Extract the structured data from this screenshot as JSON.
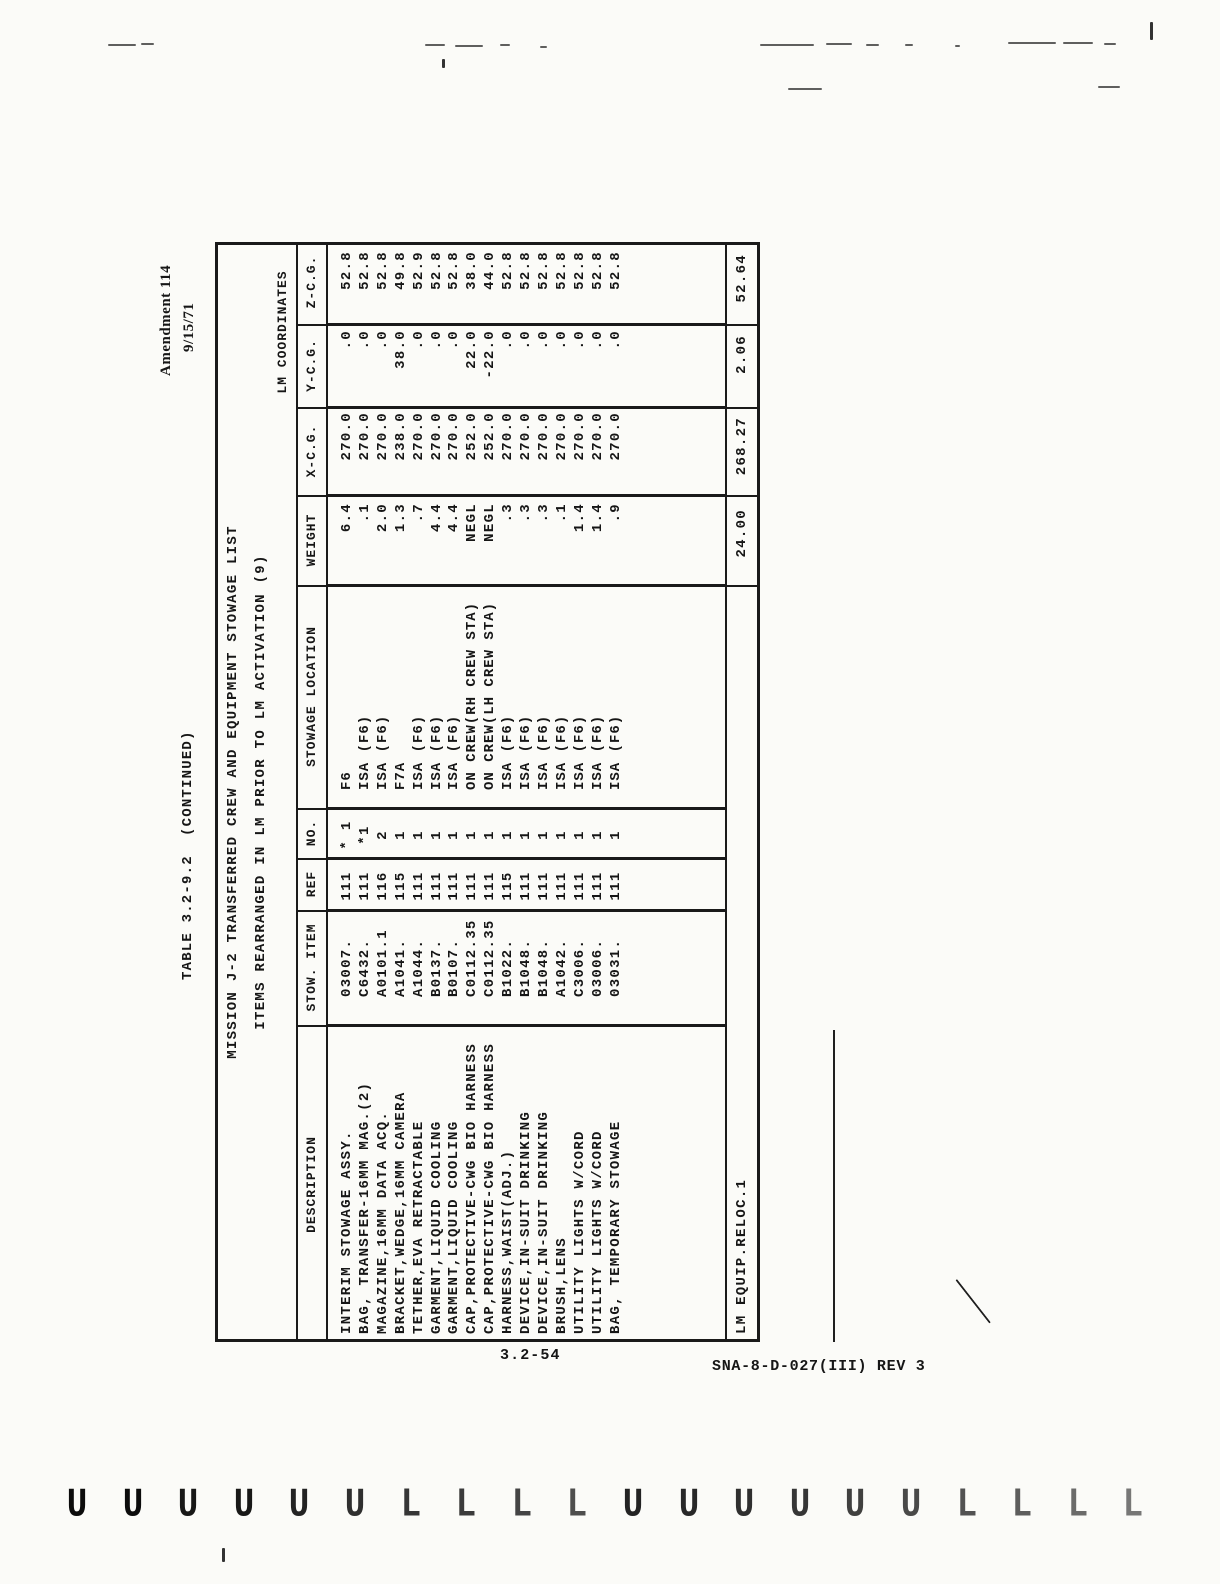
{
  "page": {
    "amendment_line1": "Amendment 114",
    "amendment_line2": "9/15/71",
    "table_caption": "TABLE 3.2-9.2  (CONTINUED)",
    "footer_page_number": "3.2-54",
    "footer_doc_number": "SNA-8-D-027(III) REV 3"
  },
  "table": {
    "title_line1": "MISSION J-2 TRANSFERRED CREW AND EQUIPMENT STOWAGE LIST",
    "title_line2": "ITEMS REARRANGED IN LM PRIOR TO LM ACTIVATION (9)",
    "coordinates_header": "LM COORDINATES",
    "columns": [
      "DESCRIPTION",
      "STOW. ITEM",
      "REF",
      "NO.",
      "STOWAGE LOCATION",
      "WEIGHT",
      "X-C.G.",
      "Y-C.G.",
      "Z-C.G."
    ],
    "rows": [
      {
        "description": "INTERIM STOWAGE ASSY.",
        "stow_item": "03007.",
        "ref": "111",
        "no": "* 1",
        "location": "F6",
        "weight": "6.4",
        "x_cg": "270.0",
        "y_cg": ".0",
        "z_cg": "52.8"
      },
      {
        "description": "BAG, TRANSFER-16MM MAG.(2)",
        "stow_item": "C6432.",
        "ref": "111",
        "no": "*1",
        "location": "ISA (F6)",
        "weight": ".1",
        "x_cg": "270.0",
        "y_cg": ".0",
        "z_cg": "52.8"
      },
      {
        "description": "MAGAZINE,16MM DATA ACQ.",
        "stow_item": "A0101.1",
        "ref": "116",
        "no": "2",
        "location": "ISA (F6)",
        "weight": "2.0",
        "x_cg": "270.0",
        "y_cg": ".0",
        "z_cg": "52.8"
      },
      {
        "description": "BRACKET,WEDGE,16MM CAMERA",
        "stow_item": "A1041.",
        "ref": "115",
        "no": "1",
        "location": "F7A",
        "weight": "1.3",
        "x_cg": "238.0",
        "y_cg": "38.0",
        "z_cg": "49.8"
      },
      {
        "description": "TETHER,EVA RETRACTABLE",
        "stow_item": "A1044.",
        "ref": "111",
        "no": "1",
        "location": "ISA (F6)",
        "weight": ".7",
        "x_cg": "270.0",
        "y_cg": ".0",
        "z_cg": "52.9"
      },
      {
        "description": "GARMENT,LIQUID COOLING",
        "stow_item": "B0137.",
        "ref": "111",
        "no": "1",
        "location": "ISA (F6)",
        "weight": "4.4",
        "x_cg": "270.0",
        "y_cg": ".0",
        "z_cg": "52.8"
      },
      {
        "description": "GARMENT,LIQUID COOLING",
        "stow_item": "B0107.",
        "ref": "111",
        "no": "1",
        "location": "ISA (F6)",
        "weight": "4.4",
        "x_cg": "270.0",
        "y_cg": ".0",
        "z_cg": "52.8"
      },
      {
        "description": "CAP,PROTECTIVE-CWG BIO HARNESS",
        "stow_item": "C0112.35",
        "ref": "111",
        "no": "1",
        "location": "ON CREW(RH CREW STA)",
        "weight": "NEGL",
        "x_cg": "252.0",
        "y_cg": "22.0",
        "z_cg": "38.0"
      },
      {
        "description": "CAP,PROTECTIVE-CWG BIO HARNESS",
        "stow_item": "C0112.35",
        "ref": "111",
        "no": "1",
        "location": "ON CREW(LH CREW STA)",
        "weight": "NEGL",
        "x_cg": "252.0",
        "y_cg": "-22.0",
        "z_cg": "44.0"
      },
      {
        "description": "HARNESS,WAIST(ADJ.)",
        "stow_item": "B1022.",
        "ref": "115",
        "no": "1",
        "location": "ISA (F6)",
        "weight": ".3",
        "x_cg": "270.0",
        "y_cg": ".0",
        "z_cg": "52.8"
      },
      {
        "description": "DEVICE,IN-SUIT DRINKING",
        "stow_item": "B1048.",
        "ref": "111",
        "no": "1",
        "location": "ISA (F6)",
        "weight": ".3",
        "x_cg": "270.0",
        "y_cg": ".0",
        "z_cg": "52.8"
      },
      {
        "description": "DEVICE,IN-SUIT DRINKING",
        "stow_item": "B1048.",
        "ref": "111",
        "no": "1",
        "location": "ISA (F6)",
        "weight": ".3",
        "x_cg": "270.0",
        "y_cg": ".0",
        "z_cg": "52.8"
      },
      {
        "description": "BRUSH,LENS",
        "stow_item": "A1042.",
        "ref": "111",
        "no": "1",
        "location": "ISA (F6)",
        "weight": ".1",
        "x_cg": "270.0",
        "y_cg": ".0",
        "z_cg": "52.8"
      },
      {
        "description": "UTILITY LIGHTS W/CORD",
        "stow_item": "C3006.",
        "ref": "111",
        "no": "1",
        "location": "ISA (F6)",
        "weight": "1.4",
        "x_cg": "270.0",
        "y_cg": ".0",
        "z_cg": "52.8"
      },
      {
        "description": "UTILITY LIGHTS W/CORD",
        "stow_item": "03006.",
        "ref": "111",
        "no": "1",
        "location": "ISA (F6)",
        "weight": "1.4",
        "x_cg": "270.0",
        "y_cg": ".0",
        "z_cg": "52.8"
      },
      {
        "description": "BAG, TEMPORARY STOWAGE",
        "stow_item": "03031.",
        "ref": "111",
        "no": "1",
        "location": "ISA (F6)",
        "weight": ".9",
        "x_cg": "270.0",
        "y_cg": ".0",
        "z_cg": "52.8"
      }
    ],
    "summary": {
      "label": "LM EQUIP.RELOC.1",
      "weight": "24.00",
      "x_cg": "268.27",
      "y_cg": "2.06",
      "z_cg": "52.64"
    }
  },
  "feed_marks": [
    "U",
    "U",
    "U",
    "U",
    "U",
    "U",
    "L",
    "L",
    "L",
    "L",
    "U",
    "U",
    "U",
    "U",
    "U",
    "U",
    "L",
    "L",
    "L",
    "L"
  ],
  "ink_color": "#161616"
}
